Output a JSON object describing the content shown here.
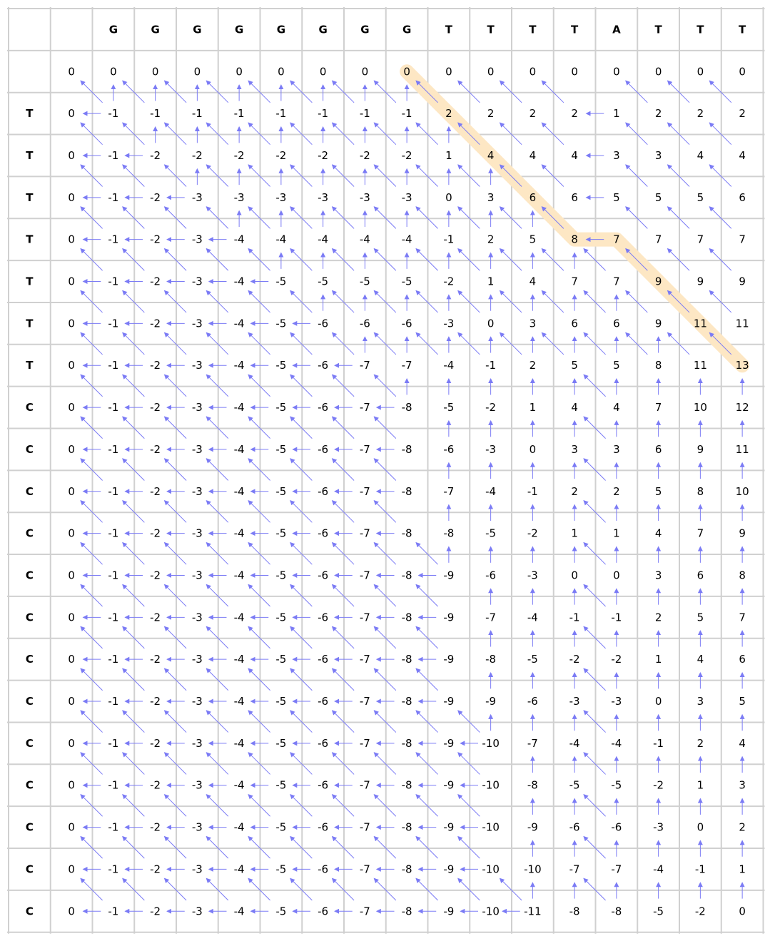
{
  "alignment": {
    "top_sequence": [
      "G",
      "G",
      "G",
      "G",
      "G",
      "G",
      "G",
      "G",
      "T",
      "T",
      "T",
      "T",
      "A",
      "T",
      "T",
      "T"
    ],
    "left_sequence": [
      "T",
      "T",
      "T",
      "T",
      "T",
      "T",
      "T",
      "C",
      "C",
      "C",
      "C",
      "C",
      "C",
      "C",
      "C",
      "C",
      "C",
      "C",
      "C",
      "C"
    ],
    "scores": [
      [
        0,
        0,
        0,
        0,
        0,
        0,
        0,
        0,
        0,
        0,
        0,
        0,
        0,
        0,
        0,
        0,
        0
      ],
      [
        0,
        -1,
        -1,
        -1,
        -1,
        -1,
        -1,
        -1,
        -1,
        2,
        2,
        2,
        2,
        1,
        2,
        2,
        2
      ],
      [
        0,
        -1,
        -2,
        -2,
        -2,
        -2,
        -2,
        -2,
        -2,
        1,
        4,
        4,
        4,
        3,
        3,
        4,
        4
      ],
      [
        0,
        -1,
        -2,
        -3,
        -3,
        -3,
        -3,
        -3,
        -3,
        0,
        3,
        6,
        6,
        5,
        5,
        5,
        6
      ],
      [
        0,
        -1,
        -2,
        -3,
        -4,
        -4,
        -4,
        -4,
        -4,
        -1,
        2,
        5,
        8,
        7,
        7,
        7,
        7
      ],
      [
        0,
        -1,
        -2,
        -3,
        -4,
        -5,
        -5,
        -5,
        -5,
        -2,
        1,
        4,
        7,
        7,
        9,
        9,
        9
      ],
      [
        0,
        -1,
        -2,
        -3,
        -4,
        -5,
        -6,
        -6,
        -6,
        -3,
        0,
        3,
        6,
        6,
        9,
        11,
        11
      ],
      [
        0,
        -1,
        -2,
        -3,
        -4,
        -5,
        -6,
        -7,
        -7,
        -4,
        -1,
        2,
        5,
        5,
        8,
        11,
        13
      ],
      [
        0,
        -1,
        -2,
        -3,
        -4,
        -5,
        -6,
        -7,
        -8,
        -5,
        -2,
        1,
        4,
        4,
        7,
        10,
        12
      ],
      [
        0,
        -1,
        -2,
        -3,
        -4,
        -5,
        -6,
        -7,
        -8,
        -6,
        -3,
        0,
        3,
        3,
        6,
        9,
        11
      ],
      [
        0,
        -1,
        -2,
        -3,
        -4,
        -5,
        -6,
        -7,
        -8,
        -7,
        -4,
        -1,
        2,
        2,
        5,
        8,
        10
      ],
      [
        0,
        -1,
        -2,
        -3,
        -4,
        -5,
        -6,
        -7,
        -8,
        -8,
        -5,
        -2,
        1,
        1,
        4,
        7,
        9
      ],
      [
        0,
        -1,
        -2,
        -3,
        -4,
        -5,
        -6,
        -7,
        -8,
        -9,
        -6,
        -3,
        0,
        0,
        3,
        6,
        8
      ],
      [
        0,
        -1,
        -2,
        -3,
        -4,
        -5,
        -6,
        -7,
        -8,
        -9,
        -7,
        -4,
        -1,
        -1,
        2,
        5,
        7
      ],
      [
        0,
        -1,
        -2,
        -3,
        -4,
        -5,
        -6,
        -7,
        -8,
        -9,
        -8,
        -5,
        -2,
        -2,
        1,
        4,
        6
      ],
      [
        0,
        -1,
        -2,
        -3,
        -4,
        -5,
        -6,
        -7,
        -8,
        -9,
        -9,
        -6,
        -3,
        -3,
        0,
        3,
        5
      ],
      [
        0,
        -1,
        -2,
        -3,
        -4,
        -5,
        -6,
        -7,
        -8,
        -9,
        -10,
        -7,
        -4,
        -4,
        -1,
        2,
        4
      ],
      [
        0,
        -1,
        -2,
        -3,
        -4,
        -5,
        -6,
        -7,
        -8,
        -9,
        -10,
        -8,
        -5,
        -5,
        -2,
        1,
        3
      ],
      [
        0,
        -1,
        -2,
        -3,
        -4,
        -5,
        -6,
        -7,
        -8,
        -9,
        -10,
        -9,
        -6,
        -6,
        -3,
        0,
        2
      ],
      [
        0,
        -1,
        -2,
        -3,
        -4,
        -5,
        -6,
        -7,
        -8,
        -9,
        -10,
        -10,
        -7,
        -7,
        -4,
        -1,
        1
      ],
      [
        0,
        -1,
        -2,
        -3,
        -4,
        -5,
        -6,
        -7,
        -8,
        -9,
        -10,
        -11,
        -8,
        -8,
        -5,
        -2,
        0
      ]
    ],
    "traceback_path": [
      [
        0,
        8
      ],
      [
        1,
        9
      ],
      [
        2,
        10
      ],
      [
        3,
        11
      ],
      [
        4,
        12
      ],
      [
        4,
        13
      ],
      [
        5,
        14
      ],
      [
        6,
        15
      ],
      [
        7,
        16
      ]
    ],
    "scoring": {
      "match": 2,
      "mismatch": -1,
      "gap": -1
    },
    "colors": {
      "grid": "#d0d0d0",
      "arrow": "#7b7bf5",
      "path_highlight": "#fde7c4",
      "text": "#000000"
    }
  }
}
